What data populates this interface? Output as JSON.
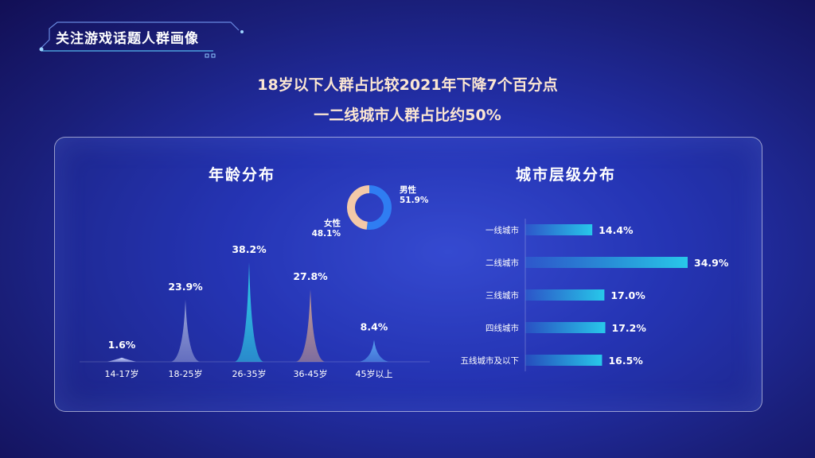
{
  "page": {
    "header_title": "关注游戏话题人群画像",
    "headline_1": "18岁以下人群占比较2021年下降7个百分点",
    "headline_2": "一二线城市人群占比约50%"
  },
  "colors": {
    "age_peaks": [
      "#c9d3ff",
      "#9aa4d8",
      "#2fd3e8",
      "#c89c8f",
      "#5aa2f0"
    ],
    "city_bar": "#28c8ea",
    "donut_male": "#2f7df2",
    "donut_female": "#f3c9a8"
  },
  "chart_data": [
    {
      "type": "area",
      "title": "年龄分布",
      "categories": [
        "14-17岁",
        "18-25岁",
        "26-35岁",
        "36-45岁",
        "45岁以上"
      ],
      "values": [
        1.6,
        23.9,
        38.2,
        27.8,
        8.4
      ],
      "value_labels": [
        "1.6%",
        "23.9%",
        "38.2%",
        "27.8%",
        "8.4%"
      ],
      "grid": false
    },
    {
      "type": "pie",
      "categories": [
        "男性",
        "女性"
      ],
      "values": [
        51.9,
        48.1
      ],
      "value_labels": [
        "51.9%",
        "48.1%"
      ]
    },
    {
      "type": "bar",
      "title": "城市层级分布",
      "categories": [
        "一线城市",
        "二线城市",
        "三线城市",
        "四线城市",
        "五线城市及以下"
      ],
      "values": [
        14.4,
        34.9,
        17.0,
        17.2,
        16.5
      ],
      "value_labels": [
        "14.4%",
        "34.9%",
        "17.0%",
        "17.2%",
        "16.5%"
      ],
      "grid": false
    }
  ]
}
